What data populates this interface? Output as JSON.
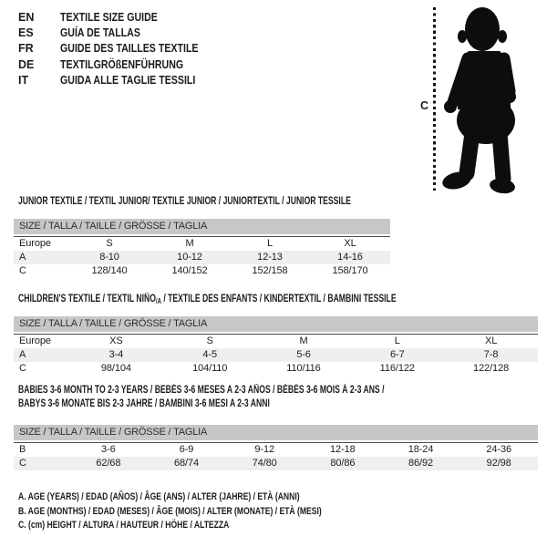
{
  "header": {
    "languages": [
      {
        "code": "EN",
        "label": "TEXTILE SIZE GUIDE"
      },
      {
        "code": "ES",
        "label": "GUÍA DE TALLAS"
      },
      {
        "code": "FR",
        "label": "GUIDE DES TAILLES TEXTILE"
      },
      {
        "code": "DE",
        "label": "TEXTILGRÖßENFÜHRUNG"
      },
      {
        "code": "IT",
        "label": "GUIDA ALLE TAGLIE TESSILI"
      }
    ]
  },
  "figure": {
    "height_label": "C",
    "description": "baby-silhouette"
  },
  "tables": [
    {
      "title_lines": [
        "JUNIOR TEXTILE / TEXTIL JUNIOR/ TEXTILE JUNIOR / JUNIORTEXTIL / JUNIOR TESSILE"
      ],
      "size_header": "SIZE / TALLA / TAILLE / GRÖSSE / TAGLIA",
      "rows": [
        [
          "Europe",
          "S",
          "M",
          "L",
          "XL"
        ],
        [
          "A",
          "8-10",
          "10-12",
          "12-13",
          "14-16"
        ],
        [
          "C",
          "128/140",
          "140/152",
          "152/158",
          "158/170"
        ]
      ]
    },
    {
      "title_parts": [
        {
          "t": "CHILDREN'S TEXTILE / TEXTIL NIÑO"
        },
        {
          "t": "/A",
          "sub": true
        },
        {
          "t": " / TEXTILE DES ENFANTS / KINDERTEXTIL / BAMBINI TESSILE"
        }
      ],
      "size_header": "SIZE / TALLA / TAILLE / GRÖSSE / TAGLIA",
      "rows": [
        [
          "Europe",
          "XS",
          "S",
          "M",
          "L",
          "XL"
        ],
        [
          "A",
          "3-4",
          "4-5",
          "5-6",
          "6-7",
          "7-8"
        ],
        [
          "C",
          "98/104",
          "104/110",
          "110/116",
          "116/122",
          "122/128"
        ]
      ]
    },
    {
      "title_lines": [
        "BABIES 3-6 MONTH TO 2-3 YEARS / BEBÉS 3-6 MESES A 2-3 AÑOS / BÉBÉS 3-6 MOIS À 2-3 ANS /",
        "BABYS 3-6 MONATE BIS 2-3 JAHRE / BAMBINI 3-6 MESI A 2-3 ANNI"
      ],
      "size_header": "SIZE / TALLA / TAILLE / GRÖSSE / TAGLIA",
      "rows": [
        [
          "B",
          "3-6",
          "6-9",
          "9-12",
          "12-18",
          "18-24",
          "24-36"
        ],
        [
          "C",
          "62/68",
          "68/74",
          "74/80",
          "80/86",
          "86/92",
          "92/98"
        ]
      ]
    }
  ],
  "notes": [
    "A. AGE (YEARS) / EDAD (AÑOS) / ÂGE (ANS) / ALTER (JAHRE) / ETÀ (ANNI)",
    "B. AGE (MONTHS) / EDAD (MESES) / ÂGE (MOIS) / ALTER (MONATE) / ETÀ (MESI)",
    "C. (cm) HEIGHT / ALTURA / HAUTEUR / HÖHE / ALTEZZA"
  ],
  "colors": {
    "background": "#ffffff",
    "header_bar_bg": "#c7c7c7",
    "alt_row_bg": "#efefef",
    "rule": "#4d4d4d",
    "text": "#1c1c1c",
    "silhouette": "#0d0d0d"
  }
}
